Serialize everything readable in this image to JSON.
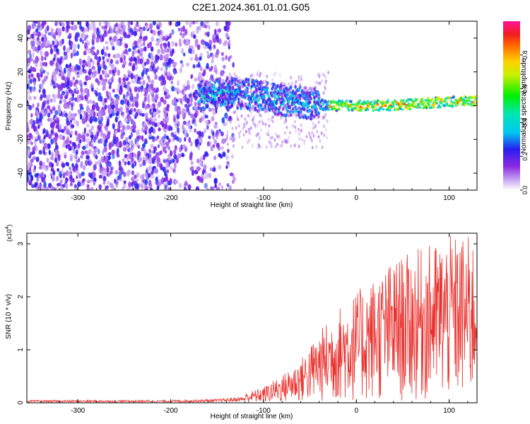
{
  "title": "C2E1.2024.361.01.01.G05",
  "colors": {
    "signal": "#e8302c",
    "axis": "#000000"
  },
  "chart_data": [
    {
      "type": "heatmap",
      "xlabel": "Height of straight line (km)",
      "ylabel": "Frequency (Hz)",
      "xlim": [
        -355,
        130
      ],
      "ylim": [
        -50,
        50
      ],
      "xticks": [
        -300,
        -200,
        -100,
        0,
        100
      ],
      "yticks": [
        -40,
        -20,
        0,
        20,
        40
      ],
      "grid": false,
      "colorbar": {
        "label": "Normalized spectral amplitude",
        "range": [
          0,
          1
        ],
        "ticks": [
          0.0,
          0.2,
          0.4,
          0.6,
          0.8
        ],
        "tick_labels": [
          "0.0",
          "0.2",
          "0.4",
          "0.6",
          "0.8"
        ],
        "colormap": "rainbow (white-violet-blue-cyan-green-yellow-red-magenta)"
      },
      "ridge": [
        {
          "x": -165,
          "y": 5
        },
        {
          "x": -140,
          "y": 8
        },
        {
          "x": -120,
          "y": 7
        },
        {
          "x": -100,
          "y": 5
        },
        {
          "x": -80,
          "y": 3
        },
        {
          "x": -60,
          "y": 2
        },
        {
          "x": -45,
          "y": 1
        },
        {
          "x": -30,
          "y": 0
        },
        {
          "x": 0,
          "y": 0
        },
        {
          "x": 30,
          "y": 0
        },
        {
          "x": 60,
          "y": 1
        },
        {
          "x": 90,
          "y": 2
        },
        {
          "x": 130,
          "y": 3
        }
      ]
    },
    {
      "type": "line",
      "xlabel": "Height of straight line (km)",
      "ylabel": "SNR (10 * v/v)",
      "y_multiplier": "(x10",
      "y_multiplier_exp": "4",
      "y_multiplier_close": ")",
      "xlim": [
        -355,
        130
      ],
      "ylim": [
        0,
        3.2
      ],
      "xticks": [
        -300,
        -200,
        -100,
        0,
        100
      ],
      "yticks": [
        0,
        1,
        2,
        3
      ],
      "grid": false,
      "series": [
        {
          "envelope": [
            {
              "x": -355,
              "y": 0.05
            },
            {
              "x": -200,
              "y": 0.05
            },
            {
              "x": -150,
              "y": 0.07
            },
            {
              "x": -120,
              "y": 0.12
            },
            {
              "x": -100,
              "y": 0.2
            },
            {
              "x": -80,
              "y": 0.35
            },
            {
              "x": -60,
              "y": 0.55
            },
            {
              "x": -40,
              "y": 0.9
            },
            {
              "x": -20,
              "y": 1.2
            },
            {
              "x": 0,
              "y": 1.4
            },
            {
              "x": 20,
              "y": 1.6
            },
            {
              "x": 40,
              "y": 1.8
            },
            {
              "x": 60,
              "y": 1.9
            },
            {
              "x": 80,
              "y": 2.0
            },
            {
              "x": 100,
              "y": 2.1
            },
            {
              "x": 120,
              "y": 2.1
            },
            {
              "x": 130,
              "y": 2.1
            }
          ]
        }
      ]
    }
  ]
}
